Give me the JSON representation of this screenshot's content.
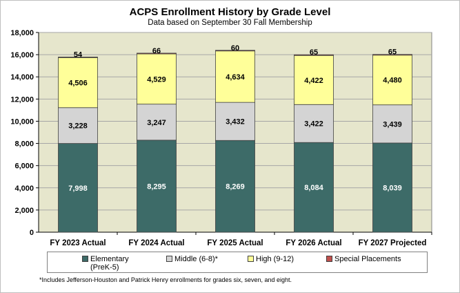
{
  "chart_data": {
    "type": "bar",
    "stacked": true,
    "title": "ACPS Enrollment History by Grade Level",
    "subtitle": "Data based on September 30 Fall Membership",
    "categories": [
      "FY 2023 Actual",
      "FY 2024 Actual",
      "FY 2025 Actual",
      "FY 2026 Actual",
      "FY 2027 Projected"
    ],
    "series": [
      {
        "name": "Elementary (PreK-5)",
        "color": "#3d6b68",
        "label_color": "#ffffff",
        "values": [
          7998,
          8295,
          8269,
          8084,
          8039
        ],
        "labels": [
          "7,998",
          "8,295",
          "8,269",
          "8,084",
          "8,039"
        ]
      },
      {
        "name": "Middle (6-8)*",
        "color": "#d4d4d4",
        "label_color": "#000000",
        "values": [
          3228,
          3247,
          3432,
          3422,
          3439
        ],
        "labels": [
          "3,228",
          "3,247",
          "3,432",
          "3,422",
          "3,439"
        ]
      },
      {
        "name": "High (9-12)",
        "color": "#ffff99",
        "label_color": "#000000",
        "values": [
          4506,
          4529,
          4634,
          4422,
          4480
        ],
        "labels": [
          "4,506",
          "4,529",
          "4,634",
          "4,422",
          "4,480"
        ]
      },
      {
        "name": "Special Placements",
        "color": "#c0504d",
        "label_color": "#000000",
        "values": [
          54,
          66,
          60,
          65,
          65
        ],
        "labels": [
          "54",
          "66",
          "60",
          "65",
          "65"
        ]
      }
    ],
    "ylim": [
      0,
      18000
    ],
    "yticks": [
      0,
      2000,
      4000,
      6000,
      8000,
      10000,
      12000,
      14000,
      16000,
      18000
    ],
    "ytick_labels": [
      "0",
      "2,000",
      "4,000",
      "6,000",
      "8,000",
      "10,000",
      "12,000",
      "14,000",
      "16,000",
      "18,000"
    ],
    "xlabel": "",
    "ylabel": "",
    "grid": true,
    "plot_background": "#e6e6cc",
    "legend": {
      "position": "bottom",
      "entries": [
        {
          "line1": "Elementary",
          "line2": "(PreK-5)"
        },
        {
          "line1": "Middle (6-8)*",
          "line2": ""
        },
        {
          "line1": "High (9-12)",
          "line2": ""
        },
        {
          "line1": "Special Placements",
          "line2": ""
        }
      ]
    }
  },
  "footnote": "*Includes Jefferson-Houston and Patrick Henry enrollments for grades six, seven, and eight."
}
